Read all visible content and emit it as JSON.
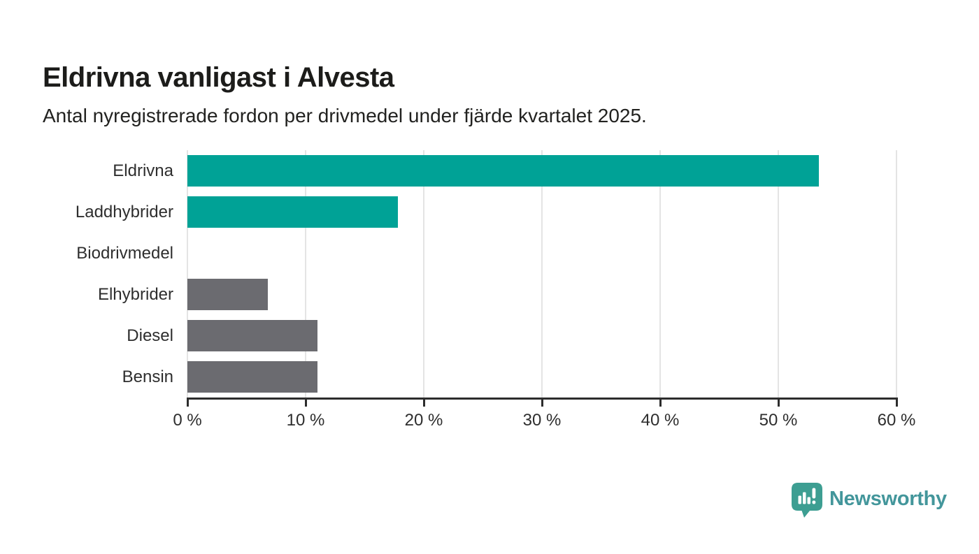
{
  "header": {
    "title": "Eldrivna vanligast i Alvesta",
    "subtitle": "Antal nyregistrerade fordon per drivmedel under fjärde kvartalet 2025."
  },
  "chart_data": {
    "type": "bar",
    "orientation": "horizontal",
    "title": "Eldrivna vanligast i Alvesta",
    "subtitle": "Antal nyregistrerade fordon per drivmedel under fjärde kvartalet 2025.",
    "categories": [
      "Eldrivna",
      "Laddhybrider",
      "Biodrivmedel",
      "Elhybrider",
      "Diesel",
      "Bensin"
    ],
    "values": [
      53.4,
      17.8,
      0,
      6.8,
      11.0,
      11.0
    ],
    "unit": "%",
    "xlim": [
      0,
      60
    ],
    "x_tick_values": [
      0,
      10,
      20,
      30,
      40,
      50,
      60
    ],
    "x_tick_labels": [
      "0 %",
      "10 %",
      "20 %",
      "30 %",
      "40 %",
      "50 %",
      "60 %"
    ],
    "grid": true,
    "legend_position": "none",
    "bar_colors": [
      "#00a296",
      "#00a296",
      "#6b6b70",
      "#6b6b70",
      "#6b6b70",
      "#6b6b70"
    ]
  },
  "colors": {
    "teal": "#00a296",
    "gray": "#6b6b70",
    "axis": "#2d2d2d",
    "grid": "#e4e4e4",
    "logo": "#43969b",
    "logo_icon": "#3d9e92"
  },
  "footer": {
    "brand": "Newsworthy",
    "logo_icon": "newsworthy-pin-barchart-icon"
  }
}
